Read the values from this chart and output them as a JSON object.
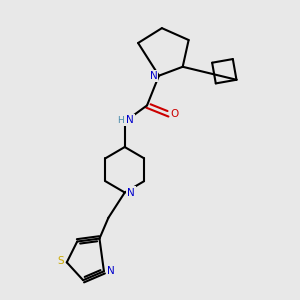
{
  "bg_color": "#e8e8e8",
  "bond_color": "#000000",
  "N_color": "#0000cc",
  "O_color": "#cc0000",
  "S_color": "#ccaa00",
  "NH_color": "#4488aa",
  "line_width": 1.5,
  "figsize": [
    3.0,
    3.0
  ],
  "dpi": 100,
  "xlim": [
    0,
    10
  ],
  "ylim": [
    0,
    10
  ]
}
